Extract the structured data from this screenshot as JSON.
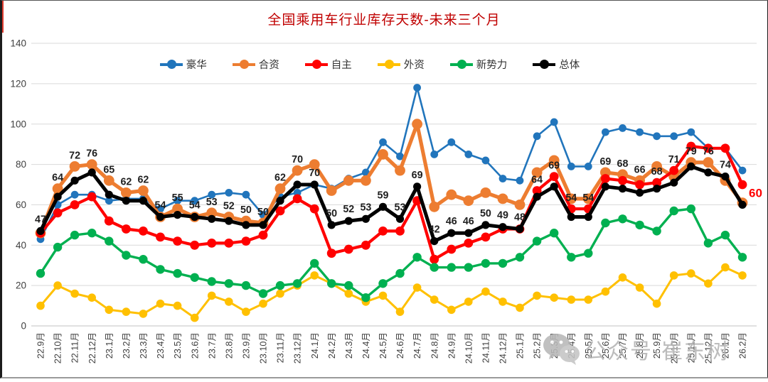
{
  "title": "全国乘用车行业库存天数-未来三个月",
  "title_color": "#C00000",
  "watermark": {
    "text": "公众号·崔东树",
    "icon": "wechat-icon"
  },
  "y_axis_ticks": [
    "0",
    "20",
    "40",
    "60",
    "80",
    "100",
    "120",
    "140"
  ],
  "chart_data": {
    "type": "line",
    "title": "全国乘用车行业库存天数-未来三个月",
    "xlabel": "",
    "ylabel": "",
    "ylim": [
      0,
      140
    ],
    "y_step": 20,
    "grid": "horizontal",
    "legend_position": "top-center",
    "x_labels_rotation": -90,
    "data_labels_series": "总体",
    "last_label_color": "#FF0000",
    "categories": [
      "22.9月",
      "22.10月",
      "22.11月",
      "22.12月",
      "23.1月",
      "23.2月",
      "23.3月",
      "23.4月",
      "23.5月",
      "23.6月",
      "23.7月",
      "23.8月",
      "23.9月",
      "23.10月",
      "23.11月",
      "23.12月",
      "24.1月",
      "24.2月",
      "24.3月",
      "24.4月",
      "24.5月",
      "24.6月",
      "24.7月",
      "24.8月",
      "24.9月",
      "24.10月",
      "24.11月",
      "24.12月",
      "25.1月",
      "25.2月",
      "25.3月",
      "25.4月",
      "25.5月",
      "25.6月",
      "25.7月",
      "25.8月",
      "25.9月",
      "25.10月",
      "25.11月",
      "25.12月",
      "26.1月",
      "26.2月"
    ],
    "series": [
      {
        "name": "豪华",
        "color": "#2175BC",
        "values": [
          43,
          60,
          65,
          65,
          62,
          63,
          63,
          58,
          62,
          62,
          65,
          66,
          65,
          55,
          64,
          66,
          70,
          68,
          73,
          76,
          91,
          84,
          118,
          85,
          91,
          85,
          82,
          73,
          72,
          94,
          101,
          79,
          79,
          96,
          98,
          96,
          94,
          94,
          96,
          88,
          88,
          77
        ]
      },
      {
        "name": "合资",
        "color": "#ED7D31",
        "values": [
          46,
          68,
          79,
          80,
          72,
          66,
          67,
          54,
          58,
          54,
          56,
          54,
          52,
          51,
          68,
          77,
          80,
          67,
          72,
          72,
          85,
          77,
          100,
          59,
          65,
          62,
          66,
          63,
          60,
          76,
          82,
          63,
          63,
          76,
          75,
          72,
          79,
          74,
          81,
          81,
          72,
          61
        ]
      },
      {
        "name": "自主",
        "color": "#FF0000",
        "values": [
          46,
          56,
          60,
          64,
          52,
          48,
          47,
          44,
          42,
          40,
          41,
          41,
          42,
          45,
          57,
          63,
          58,
          36,
          38,
          40,
          47,
          47,
          62,
          33,
          38,
          41,
          44,
          48,
          48,
          67,
          74,
          58,
          58,
          73,
          72,
          70,
          71,
          77,
          89,
          88,
          88,
          70
        ]
      },
      {
        "name": "外资",
        "color": "#FFC000",
        "values": [
          10,
          20,
          16,
          14,
          8,
          7,
          6,
          11,
          10,
          4,
          15,
          12,
          7,
          11,
          16,
          20,
          25,
          21,
          16,
          12,
          15,
          7,
          19,
          13,
          8,
          12,
          17,
          12,
          9,
          15,
          14,
          13,
          13,
          17,
          24,
          19,
          11,
          25,
          26,
          21,
          29,
          25
        ]
      },
      {
        "name": "新势力",
        "color": "#00B050",
        "values": [
          26,
          39,
          45,
          46,
          42,
          35,
          33,
          28,
          26,
          24,
          22,
          21,
          20,
          16,
          20,
          21,
          31,
          21,
          20,
          14,
          21,
          26,
          34,
          29,
          29,
          29,
          31,
          31,
          34,
          42,
          46,
          34,
          36,
          51,
          53,
          50,
          47,
          57,
          58,
          41,
          45,
          34
        ]
      },
      {
        "name": "总体",
        "color": "#000000",
        "data_labels": true,
        "values": [
          47,
          64,
          72,
          76,
          65,
          62,
          62,
          54,
          55,
          54,
          53,
          52,
          50,
          50,
          62,
          70,
          70,
          50,
          52,
          53,
          59,
          53,
          69,
          42,
          46,
          46,
          50,
          49,
          48,
          64,
          69,
          54,
          54,
          69,
          68,
          66,
          68,
          71,
          79,
          76,
          74,
          60
        ]
      }
    ]
  }
}
